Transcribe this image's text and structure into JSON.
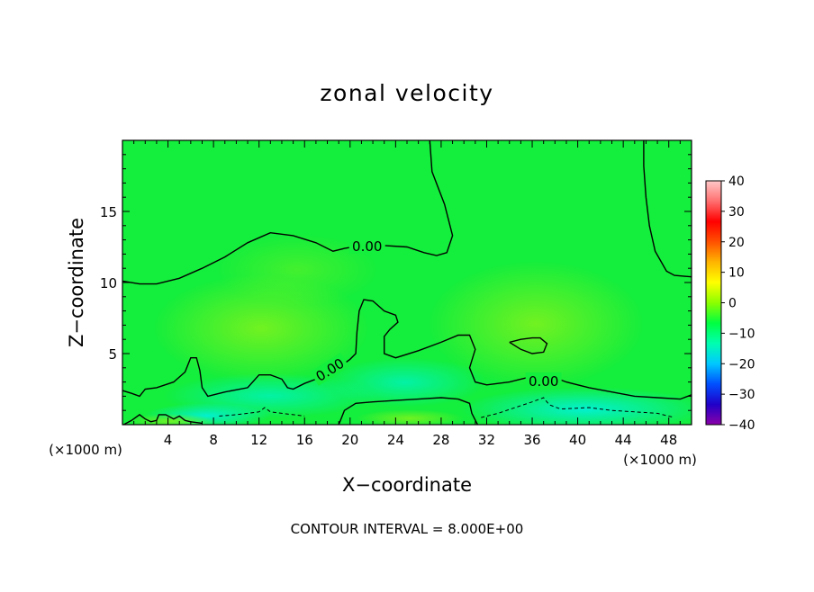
{
  "chart_data": {
    "type": "heatmap",
    "title": "zonal velocity",
    "xlabel": "X−coordinate",
    "ylabel": "Z−coordinate",
    "x_unit": "(×1000 m)",
    "z_unit": "(×1000 m)",
    "xlim": [
      0,
      50
    ],
    "ylim": [
      0,
      20
    ],
    "x_ticks": [
      4,
      8,
      12,
      16,
      20,
      24,
      28,
      32,
      36,
      40,
      44,
      48
    ],
    "x_tick_labels": [
      "4",
      "8",
      "12",
      "16",
      "20",
      "24",
      "28",
      "32",
      "36",
      "40",
      "44",
      "48"
    ],
    "y_ticks": [
      5,
      10,
      15
    ],
    "y_tick_labels": [
      "5",
      "10",
      "15"
    ],
    "colorbar": {
      "min": -40,
      "max": 40,
      "ticks": [
        40,
        30,
        20,
        10,
        0,
        -10,
        -20,
        -30,
        -40
      ],
      "tick_labels": [
        "40",
        "30",
        "20",
        "10",
        "0",
        "−10",
        "−20",
        "−30",
        "−40"
      ],
      "colors": [
        "#8a00a8",
        "#2000c8",
        "#0050ff",
        "#00c8ff",
        "#00ffb0",
        "#00ff40",
        "#8cff00",
        "#ffff00",
        "#ffb400",
        "#ff5000",
        "#ff0000",
        "#ff7070",
        "#ffc8c8"
      ]
    },
    "contour_label": "0.00",
    "contour_interval_text": "CONTOUR INTERVAL = 8.000E+00",
    "zero_contours": [
      [
        [
          0,
          10.1
        ],
        [
          1.5,
          9.9
        ],
        [
          3,
          9.9
        ],
        [
          5,
          10.3
        ],
        [
          7,
          11
        ],
        [
          9,
          11.8
        ],
        [
          11,
          12.8
        ],
        [
          13,
          13.5
        ],
        [
          15,
          13.3
        ],
        [
          17,
          12.8
        ],
        [
          18.5,
          12.2
        ],
        [
          19.5,
          12.4
        ],
        [
          21,
          12.6
        ],
        [
          23,
          12.6
        ],
        [
          25,
          12.5
        ],
        [
          26.5,
          12.1
        ],
        [
          27.6,
          11.9
        ],
        [
          28.5,
          12.1
        ],
        [
          29,
          13.3
        ],
        [
          28.3,
          15.5
        ],
        [
          27.2,
          17.8
        ],
        [
          27,
          20
        ]
      ],
      [
        [
          45.8,
          20
        ],
        [
          45.8,
          18.2
        ],
        [
          46,
          16
        ],
        [
          46.3,
          14
        ],
        [
          46.8,
          12.2
        ],
        [
          47.8,
          10.8
        ],
        [
          48.5,
          10.5
        ],
        [
          50,
          10.4
        ]
      ],
      [
        [
          0,
          2.4
        ],
        [
          0.8,
          2.2
        ],
        [
          1.5,
          2
        ],
        [
          2,
          2.5
        ],
        [
          3,
          2.6
        ],
        [
          4.5,
          3
        ],
        [
          5.5,
          3.7
        ],
        [
          6,
          4.7
        ],
        [
          6.5,
          4.7
        ],
        [
          6.8,
          3.8
        ],
        [
          7,
          2.6
        ],
        [
          7.5,
          2
        ],
        [
          9,
          2.3
        ],
        [
          11,
          2.6
        ],
        [
          12,
          3.5
        ],
        [
          13,
          3.5
        ],
        [
          14,
          3.2
        ],
        [
          14.5,
          2.6
        ],
        [
          15,
          2.5
        ],
        [
          16,
          2.9
        ],
        [
          17,
          3.2
        ],
        [
          18,
          3.5
        ],
        [
          19,
          4
        ],
        [
          20,
          4.6
        ],
        [
          20.5,
          5
        ],
        [
          20.6,
          6.5
        ],
        [
          20.8,
          8
        ],
        [
          21.2,
          8.8
        ],
        [
          22,
          8.7
        ],
        [
          23,
          8
        ],
        [
          24,
          7.7
        ],
        [
          24.2,
          7.2
        ],
        [
          23.5,
          6.7
        ],
        [
          23,
          6.2
        ],
        [
          23,
          5
        ],
        [
          24,
          4.7
        ],
        [
          26,
          5.2
        ],
        [
          28,
          5.8
        ],
        [
          29.5,
          6.3
        ],
        [
          30.5,
          6.3
        ],
        [
          31,
          5.3
        ],
        [
          30.5,
          4
        ],
        [
          31,
          3
        ],
        [
          32,
          2.8
        ],
        [
          34,
          3
        ],
        [
          36,
          3.4
        ],
        [
          37,
          3.4
        ],
        [
          38,
          3.3
        ],
        [
          39,
          3
        ],
        [
          41,
          2.6
        ],
        [
          43,
          2.3
        ],
        [
          45,
          2
        ],
        [
          47,
          1.9
        ],
        [
          49,
          1.8
        ],
        [
          50,
          2.1
        ]
      ],
      [
        [
          34,
          5.8
        ],
        [
          35,
          6
        ],
        [
          36,
          6.1
        ],
        [
          36.7,
          6.1
        ],
        [
          37.3,
          5.7
        ],
        [
          37,
          5.1
        ],
        [
          36,
          5
        ],
        [
          35,
          5.3
        ],
        [
          34,
          5.8
        ]
      ],
      [
        [
          0.1,
          0
        ],
        [
          0.8,
          0.3
        ],
        [
          1.5,
          0.7
        ],
        [
          2,
          0.4
        ],
        [
          2.5,
          0.2
        ],
        [
          3,
          0.3
        ],
        [
          3.2,
          0.7
        ],
        [
          3.8,
          0.7
        ],
        [
          4.5,
          0.4
        ],
        [
          5,
          0.6
        ],
        [
          5.5,
          0.3
        ],
        [
          6,
          0.2
        ],
        [
          7,
          0.1
        ]
      ],
      [
        [
          19,
          0
        ],
        [
          19.5,
          1
        ],
        [
          20.5,
          1.5
        ],
        [
          22,
          1.6
        ],
        [
          24,
          1.7
        ],
        [
          26,
          1.8
        ],
        [
          28,
          1.9
        ],
        [
          29.5,
          1.8
        ],
        [
          30.5,
          1.5
        ],
        [
          30.7,
          0.8
        ],
        [
          31.2,
          0
        ]
      ]
    ],
    "negative_contours": [
      [
        [
          8.5,
          0.6
        ],
        [
          10,
          0.7
        ],
        [
          11,
          0.8
        ],
        [
          12,
          0.9
        ],
        [
          12.5,
          1.2
        ],
        [
          13,
          0.9
        ],
        [
          14,
          0.8
        ],
        [
          15,
          0.7
        ],
        [
          16,
          0.6
        ]
      ],
      [
        [
          31.5,
          0.5
        ],
        [
          33,
          0.8
        ],
        [
          34.5,
          1.2
        ],
        [
          36,
          1.6
        ],
        [
          37,
          1.9
        ],
        [
          37.5,
          1.4
        ],
        [
          38.5,
          1.1
        ],
        [
          41,
          1.2
        ],
        [
          43,
          1
        ],
        [
          45,
          0.9
        ],
        [
          47,
          0.8
        ],
        [
          48.5,
          0.5
        ]
      ]
    ]
  }
}
